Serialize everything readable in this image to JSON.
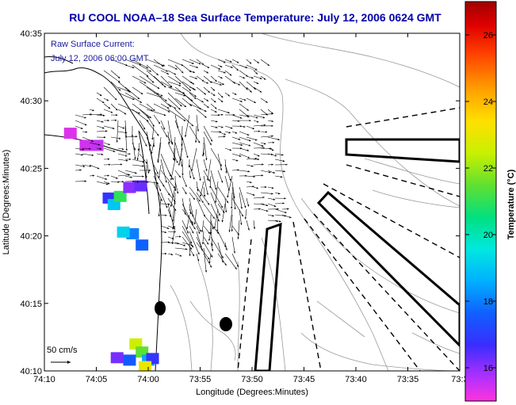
{
  "chart_data": {
    "type": "heatmap",
    "title": "RU COOL  NOAA–18  Sea Surface Temperature:  July 12, 2006 0624 GMT",
    "annotation": [
      "Raw Surface Current:",
      "July 12, 2006 06:00 GMT"
    ],
    "xlabel": "Longitude (Degrees:Minutes)",
    "ylabel": "Latitude (Degrees:Minutes)",
    "x_ticks": [
      "74:10",
      "74:05",
      "74:00",
      "73:55",
      "73:50",
      "73:45",
      "73:40",
      "73:35",
      "73:3"
    ],
    "y_ticks": [
      "40:10",
      "40:15",
      "40:20",
      "40:25",
      "40:30",
      "40:35"
    ],
    "xlim": [
      -74.1667,
      -73.5
    ],
    "ylim": [
      40.1667,
      40.5833
    ],
    "colorbar": {
      "label": "Temperature (°C)",
      "range": [
        15,
        27
      ],
      "ticks": [
        16,
        18,
        20,
        22,
        24,
        26
      ]
    },
    "scale_arrow_label": "50 cm/s",
    "sst_patches": [
      {
        "lon": -74.125,
        "lat": 40.46,
        "temp": 15.3
      },
      {
        "lon": -74.1,
        "lat": 40.445,
        "temp": 15.4
      },
      {
        "lon": -74.082,
        "lat": 40.445,
        "temp": 15.5
      },
      {
        "lon": -74.063,
        "lat": 40.38,
        "temp": 16.8
      },
      {
        "lon": -74.055,
        "lat": 40.372,
        "temp": 19.0
      },
      {
        "lon": -74.045,
        "lat": 40.382,
        "temp": 21.0
      },
      {
        "lon": -74.03,
        "lat": 40.393,
        "temp": 16.0
      },
      {
        "lon": -74.012,
        "lat": 40.395,
        "temp": 16.3
      },
      {
        "lon": -74.025,
        "lat": 40.336,
        "temp": 18.0
      },
      {
        "lon": -74.01,
        "lat": 40.322,
        "temp": 17.6
      },
      {
        "lon": -74.04,
        "lat": 40.338,
        "temp": 19.2
      },
      {
        "lon": -74.02,
        "lat": 40.2,
        "temp": 22.5
      },
      {
        "lon": -74.01,
        "lat": 40.19,
        "temp": 21.5
      },
      {
        "lon": -74.0,
        "lat": 40.18,
        "temp": 18.5
      },
      {
        "lon": -73.993,
        "lat": 40.182,
        "temp": 16.8
      },
      {
        "lon": -74.005,
        "lat": 40.172,
        "temp": 23.0
      },
      {
        "lon": -74.03,
        "lat": 40.18,
        "temp": 17.5
      },
      {
        "lon": -74.05,
        "lat": 40.183,
        "temp": 16.2
      }
    ]
  }
}
